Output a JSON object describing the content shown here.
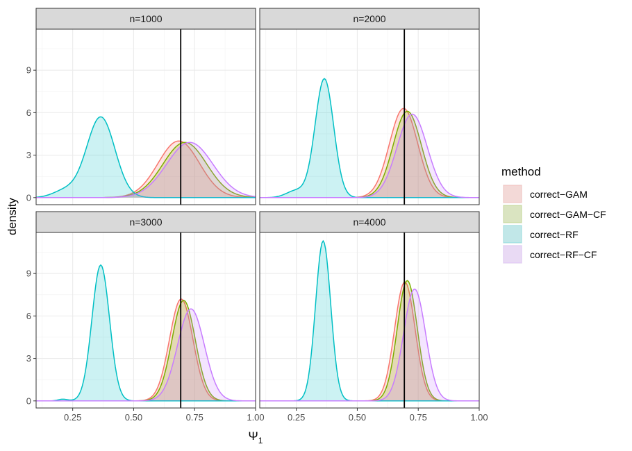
{
  "chart_data": {
    "type": "area",
    "ylabel": "density",
    "xlabel": "Ψ",
    "xlabel_subscript": "1",
    "x_domain": [
      0.1,
      1.0
    ],
    "y_domain": [
      -0.5,
      11.9
    ],
    "x_ticks": [
      0.25,
      0.5,
      0.75,
      1.0
    ],
    "x_tick_labels": [
      "0.25",
      "0.50",
      "0.75",
      "1.00"
    ],
    "y_ticks": [
      0,
      3,
      6,
      9
    ],
    "y_tick_labels": [
      "0",
      "3",
      "6",
      "9"
    ],
    "vline_x": 0.693,
    "legend": {
      "title": "method",
      "entries": [
        {
          "label": "correct−GAM",
          "color": "#F8766D"
        },
        {
          "label": "correct−GAM−CF",
          "color": "#7CAE00"
        },
        {
          "label": "correct−RF",
          "color": "#00BFC4"
        },
        {
          "label": "correct−RF−CF",
          "color": "#C77CFF"
        }
      ]
    },
    "panels": [
      {
        "title": "n=1000",
        "series": [
          {
            "name": "correct−GAM",
            "components": [
              {
                "center": 0.685,
                "sd": 0.085,
                "peak": 4.0
              }
            ]
          },
          {
            "name": "correct−GAM−CF",
            "components": [
              {
                "center": 0.71,
                "sd": 0.09,
                "peak": 3.9
              }
            ]
          },
          {
            "name": "correct−RF",
            "components": [
              {
                "center": 0.365,
                "sd": 0.058,
                "peak": 5.7
              },
              {
                "center": 0.22,
                "sd": 0.05,
                "peak": 0.5
              }
            ]
          },
          {
            "name": "correct−RF−CF",
            "components": [
              {
                "center": 0.73,
                "sd": 0.095,
                "peak": 3.9
              }
            ]
          }
        ]
      },
      {
        "title": "n=2000",
        "series": [
          {
            "name": "correct−GAM",
            "components": [
              {
                "center": 0.69,
                "sd": 0.058,
                "peak": 6.3
              }
            ]
          },
          {
            "name": "correct−GAM−CF",
            "components": [
              {
                "center": 0.705,
                "sd": 0.058,
                "peak": 6.1
              }
            ]
          },
          {
            "name": "correct−RF",
            "components": [
              {
                "center": 0.365,
                "sd": 0.038,
                "peak": 8.4
              },
              {
                "center": 0.25,
                "sd": 0.04,
                "peak": 0.5
              }
            ]
          },
          {
            "name": "correct−RF−CF",
            "components": [
              {
                "center": 0.725,
                "sd": 0.062,
                "peak": 5.9
              }
            ]
          }
        ]
      },
      {
        "title": "n=3000",
        "series": [
          {
            "name": "correct−GAM",
            "components": [
              {
                "center": 0.695,
                "sd": 0.048,
                "peak": 7.2
              }
            ]
          },
          {
            "name": "correct−GAM−CF",
            "components": [
              {
                "center": 0.705,
                "sd": 0.048,
                "peak": 7.1
              }
            ]
          },
          {
            "name": "correct−RF",
            "components": [
              {
                "center": 0.365,
                "sd": 0.036,
                "peak": 9.6
              },
              {
                "center": 0.21,
                "sd": 0.02,
                "peak": 0.12
              }
            ]
          },
          {
            "name": "correct−RF−CF",
            "components": [
              {
                "center": 0.735,
                "sd": 0.055,
                "peak": 6.5
              }
            ]
          }
        ]
      },
      {
        "title": "n=4000",
        "series": [
          {
            "name": "correct−GAM",
            "components": [
              {
                "center": 0.695,
                "sd": 0.042,
                "peak": 8.4
              }
            ]
          },
          {
            "name": "correct−GAM−CF",
            "components": [
              {
                "center": 0.705,
                "sd": 0.041,
                "peak": 8.5
              }
            ]
          },
          {
            "name": "correct−RF",
            "components": [
              {
                "center": 0.36,
                "sd": 0.031,
                "peak": 11.3
              }
            ]
          },
          {
            "name": "correct−RF−CF",
            "components": [
              {
                "center": 0.735,
                "sd": 0.045,
                "peak": 7.9
              }
            ]
          }
        ]
      }
    ]
  }
}
